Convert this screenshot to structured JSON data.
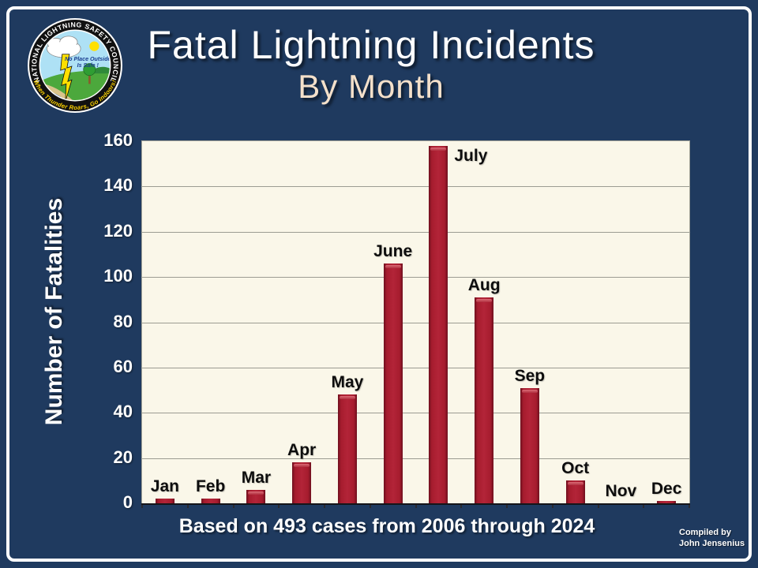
{
  "logo": {
    "name": "National Lightning Safety Council seal",
    "ring_text_top": "NATIONAL LIGHTNING SAFETY COUNCIL",
    "ring_text_bottom": "When Thunder Roars, Go Indoors!",
    "inner_text_line1": "No Place Outside",
    "inner_text_line2": "Is Safe !"
  },
  "header": {
    "title": "Fatal Lightning Incidents",
    "subtitle": "By Month"
  },
  "chart_data": {
    "type": "bar",
    "title": "Fatal Lightning Incidents By Month",
    "categories": [
      "Jan",
      "Feb",
      "Mar",
      "Apr",
      "May",
      "June",
      "July",
      "Aug",
      "Sep",
      "Oct",
      "Nov",
      "Dec"
    ],
    "values": [
      2,
      2,
      6,
      18,
      48,
      106,
      158,
      91,
      51,
      10,
      0,
      1
    ],
    "total_cases": 493,
    "ylabel": "Number of Fatalities",
    "xlabel": "",
    "ylim": [
      0,
      160
    ],
    "ytick_step": 20,
    "grid": true,
    "legend": "none",
    "bar_color": "#A61C2E",
    "plot_background": "#FAF7E9",
    "gridline_color": "#9C9C92"
  },
  "footer": {
    "caption": "Based on 493 cases from 2006 through 2024",
    "credit": [
      "Compiled by",
      "John Jensenius"
    ]
  },
  "colors": {
    "background": "#1F3A5F",
    "frame": "#FFFFFF",
    "title_text": "#FFFFFF",
    "subtitle_text": "#F4E0CA",
    "axis_text": "#FFFFFF",
    "month_label_text": "#0D0D0D"
  }
}
